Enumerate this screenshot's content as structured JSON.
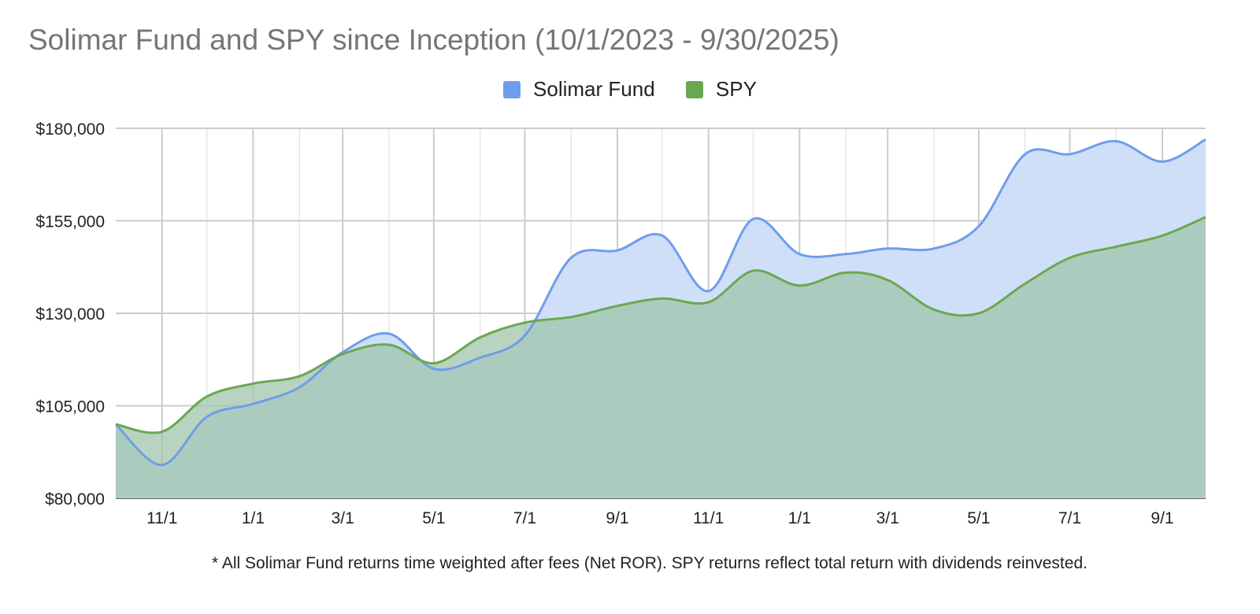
{
  "chart_data": {
    "type": "area",
    "title": "Solimar Fund and SPY since Inception (10/1/2023 - 9/30/2025)",
    "xlabel": "",
    "ylabel": "",
    "x": [
      "2023-10-01",
      "2023-11-01",
      "2023-12-01",
      "2024-01-01",
      "2024-02-01",
      "2024-03-01",
      "2024-04-01",
      "2024-05-01",
      "2024-06-01",
      "2024-07-01",
      "2024-08-01",
      "2024-09-01",
      "2024-10-01",
      "2024-11-01",
      "2024-12-01",
      "2025-01-01",
      "2025-02-01",
      "2025-03-01",
      "2025-04-01",
      "2025-05-01",
      "2025-06-01",
      "2025-07-01",
      "2025-08-01",
      "2025-09-01",
      "2025-09-30"
    ],
    "x_ticks": [
      "11/1",
      "1/1",
      "3/1",
      "5/1",
      "7/1",
      "9/1",
      "11/1",
      "1/1",
      "3/1",
      "5/1",
      "7/1",
      "9/1"
    ],
    "ylim": [
      80000,
      180000
    ],
    "y_ticks": [
      "$80,000",
      "$105,000",
      "$130,000",
      "$155,000",
      "$180,000"
    ],
    "y_tick_values": [
      80000,
      105000,
      130000,
      155000,
      180000
    ],
    "grid": true,
    "legend": "top-center",
    "series": [
      {
        "name": "Solimar Fund",
        "color": "#6d9eeb",
        "fill": "#cfdff8",
        "values": [
          100000,
          89000,
          102000,
          105500,
          110000,
          119500,
          124500,
          115000,
          118000,
          124000,
          145000,
          147000,
          151000,
          136000,
          155500,
          146000,
          146000,
          147500,
          147500,
          153500,
          173000,
          173000,
          176500,
          171000,
          177000
        ]
      },
      {
        "name": "SPY",
        "color": "#6aa84f",
        "fill": "#d3e7c9",
        "values": [
          100000,
          98000,
          107500,
          111000,
          113000,
          119000,
          121500,
          116500,
          123500,
          127500,
          129000,
          132000,
          134000,
          133000,
          141500,
          137500,
          141000,
          139000,
          131000,
          130000,
          138000,
          145000,
          148000,
          151000,
          156000
        ]
      }
    ]
  },
  "footnote": "* All Solimar Fund returns time weighted after fees (Net ROR). SPY returns reflect total return with dividends reinvested."
}
